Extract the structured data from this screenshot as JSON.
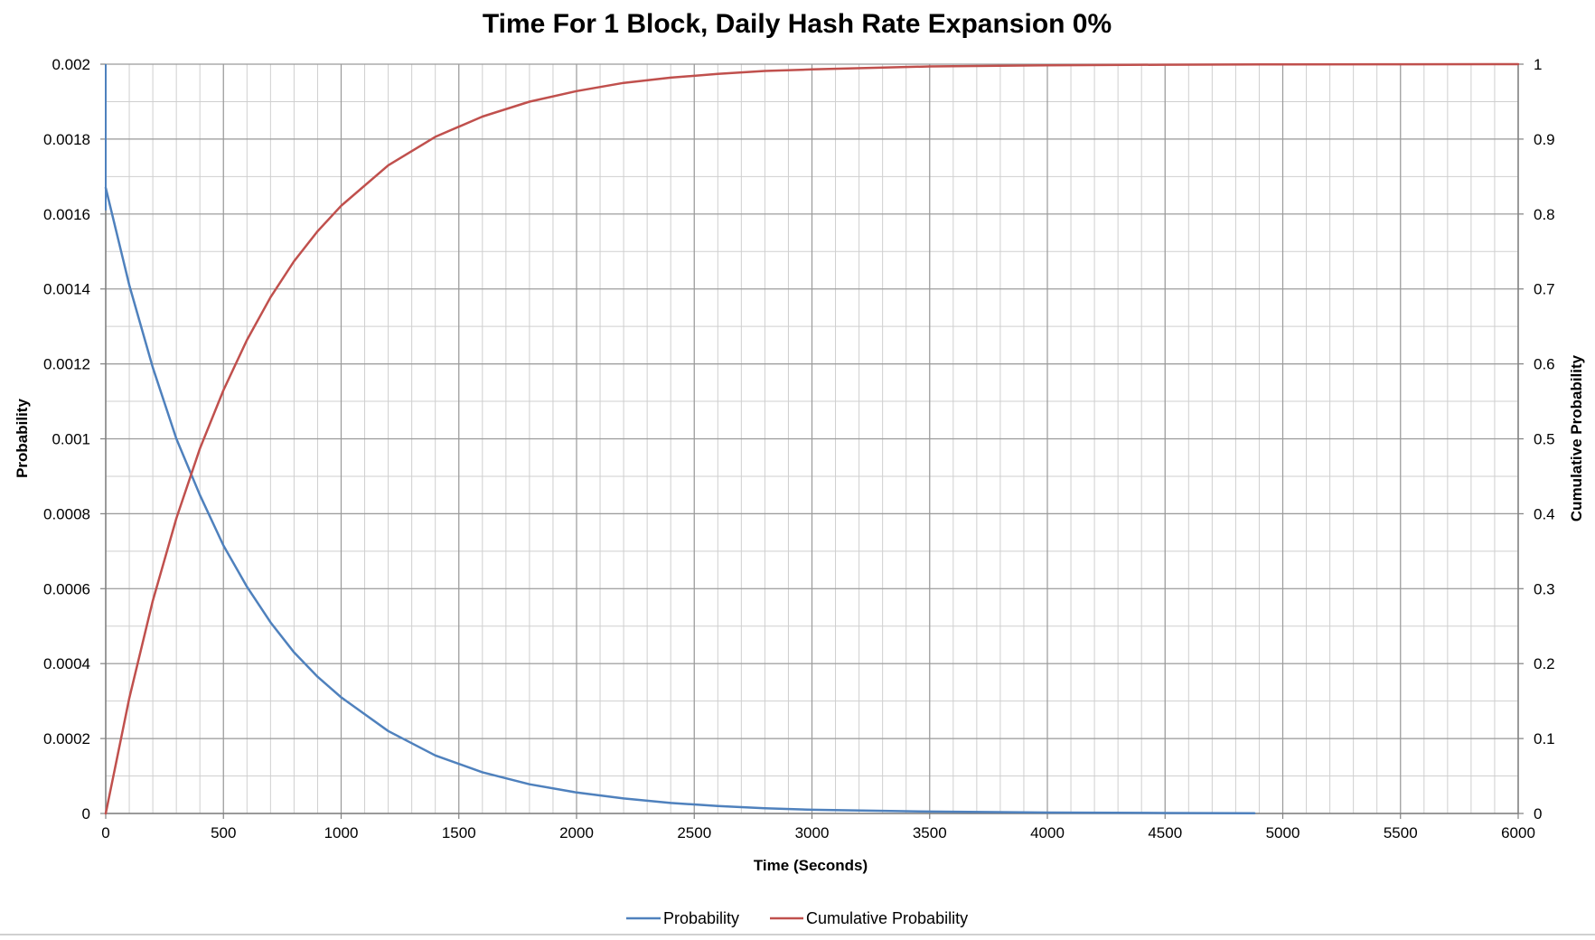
{
  "chart_data": {
    "type": "line",
    "title": "Time For 1 Block, Daily Hash Rate Expansion 0%",
    "xlabel": "Time (Seconds)",
    "ylabel": "Probability",
    "y2label": "Cumulative Probability",
    "xlim": [
      0,
      6000
    ],
    "ylim": [
      0,
      0.002
    ],
    "y2lim": [
      0,
      1
    ],
    "x_ticks": [
      0,
      500,
      1000,
      1500,
      2000,
      2500,
      3000,
      3500,
      4000,
      4500,
      5000,
      5500,
      6000
    ],
    "x_tick_labels": [
      "0",
      "500",
      "1000",
      "1500",
      "2000",
      "2500",
      "3000",
      "3500",
      "4000",
      "4500",
      "5000",
      "5500",
      "6000"
    ],
    "y_ticks": [
      0,
      0.0002,
      0.0004,
      0.0006,
      0.0008,
      0.001,
      0.0012,
      0.0014,
      0.0016,
      0.0018,
      0.002
    ],
    "y_tick_labels": [
      "0",
      "0.0002",
      "0.0004",
      "0.0006",
      "0.0008",
      "0.001",
      "0.0012",
      "0.0014",
      "0.0016",
      "0.0018",
      "0.002"
    ],
    "y2_ticks": [
      0,
      0.1,
      0.2,
      0.3,
      0.4,
      0.5,
      0.6,
      0.7,
      0.8,
      0.9,
      1
    ],
    "y2_tick_labels": [
      "0",
      "0.1",
      "0.2",
      "0.3",
      "0.4",
      "0.5",
      "0.6",
      "0.7",
      "0.8",
      "0.9",
      "1"
    ],
    "grid": true,
    "legend_position": "bottom",
    "series": [
      {
        "name": "Probability",
        "axis": "left",
        "color": "#4f81bd",
        "x": [
          0,
          100,
          200,
          300,
          400,
          500,
          600,
          700,
          800,
          900,
          1000,
          1200,
          1400,
          1600,
          1800,
          2000,
          2200,
          2400,
          2600,
          2800,
          3000,
          3500,
          4000,
          4500,
          4880
        ],
        "y": [
          0.00167,
          0.00141,
          0.00119,
          0.001,
          0.00085,
          0.000715,
          0.000605,
          0.00051,
          0.00043,
          0.000365,
          0.00031,
          0.00022,
          0.000155,
          0.00011,
          7.8e-05,
          5.6e-05,
          4e-05,
          2.8e-05,
          2e-05,
          1.4e-05,
          1e-05,
          5e-06,
          2.5e-06,
          1.2e-06,
          6e-07
        ]
      },
      {
        "name": "Cumulative Probability",
        "axis": "right",
        "color": "#c0504d",
        "x": [
          0,
          100,
          200,
          300,
          400,
          500,
          600,
          700,
          800,
          900,
          1000,
          1200,
          1400,
          1600,
          1800,
          2000,
          2200,
          2400,
          2600,
          2800,
          3000,
          3500,
          4000,
          4500,
          5000,
          5500,
          6000
        ],
        "y": [
          0,
          0.154,
          0.284,
          0.394,
          0.487,
          0.565,
          0.632,
          0.689,
          0.737,
          0.777,
          0.811,
          0.865,
          0.903,
          0.93,
          0.95,
          0.964,
          0.975,
          0.982,
          0.987,
          0.991,
          0.993,
          0.997,
          0.9985,
          0.9993,
          0.9997,
          0.9999,
          1
        ]
      }
    ]
  }
}
